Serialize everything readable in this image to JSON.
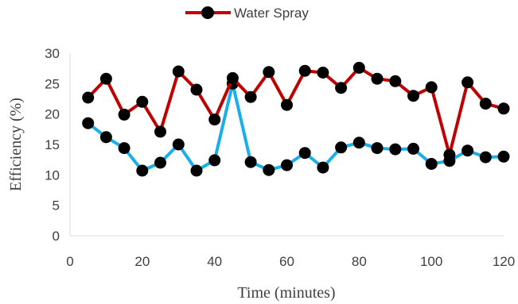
{
  "chart_data": {
    "type": "line",
    "xlabel": "Time (minutes)",
    "ylabel": "Efficiency (%)",
    "xlim": [
      0,
      120
    ],
    "ylim": [
      0,
      30
    ],
    "xticks": [
      "0",
      "20",
      "40",
      "60",
      "80",
      "100",
      "120"
    ],
    "yticks": [
      "0",
      "5",
      "10",
      "15",
      "20",
      "25",
      "30"
    ],
    "grid": false,
    "legend_position": "top-center",
    "x": [
      5,
      10,
      15,
      20,
      25,
      30,
      35,
      40,
      45,
      50,
      55,
      60,
      65,
      70,
      75,
      80,
      85,
      90,
      95,
      100,
      105,
      110,
      115,
      120
    ],
    "series": [
      {
        "name": "Water Spray",
        "color": "#C00000",
        "marker_color": "#000000",
        "values": [
          22.7,
          25.8,
          19.9,
          22.0,
          17.1,
          27.0,
          24.0,
          19.1,
          25.9,
          22.8,
          26.9,
          21.5,
          27.1,
          26.8,
          24.3,
          27.6,
          25.8,
          25.4,
          23.0,
          24.4,
          13.3,
          25.2,
          21.7,
          20.9
        ]
      },
      {
        "name": "",
        "color": "#1AAEEB",
        "marker_color": "#000000",
        "values": [
          18.5,
          16.2,
          14.4,
          10.7,
          12.0,
          15.0,
          10.7,
          12.4,
          25.0,
          12.1,
          10.8,
          11.6,
          13.6,
          11.2,
          14.5,
          15.3,
          14.4,
          14.2,
          14.3,
          11.8,
          12.3,
          14.0,
          12.9,
          13.0
        ]
      }
    ]
  }
}
